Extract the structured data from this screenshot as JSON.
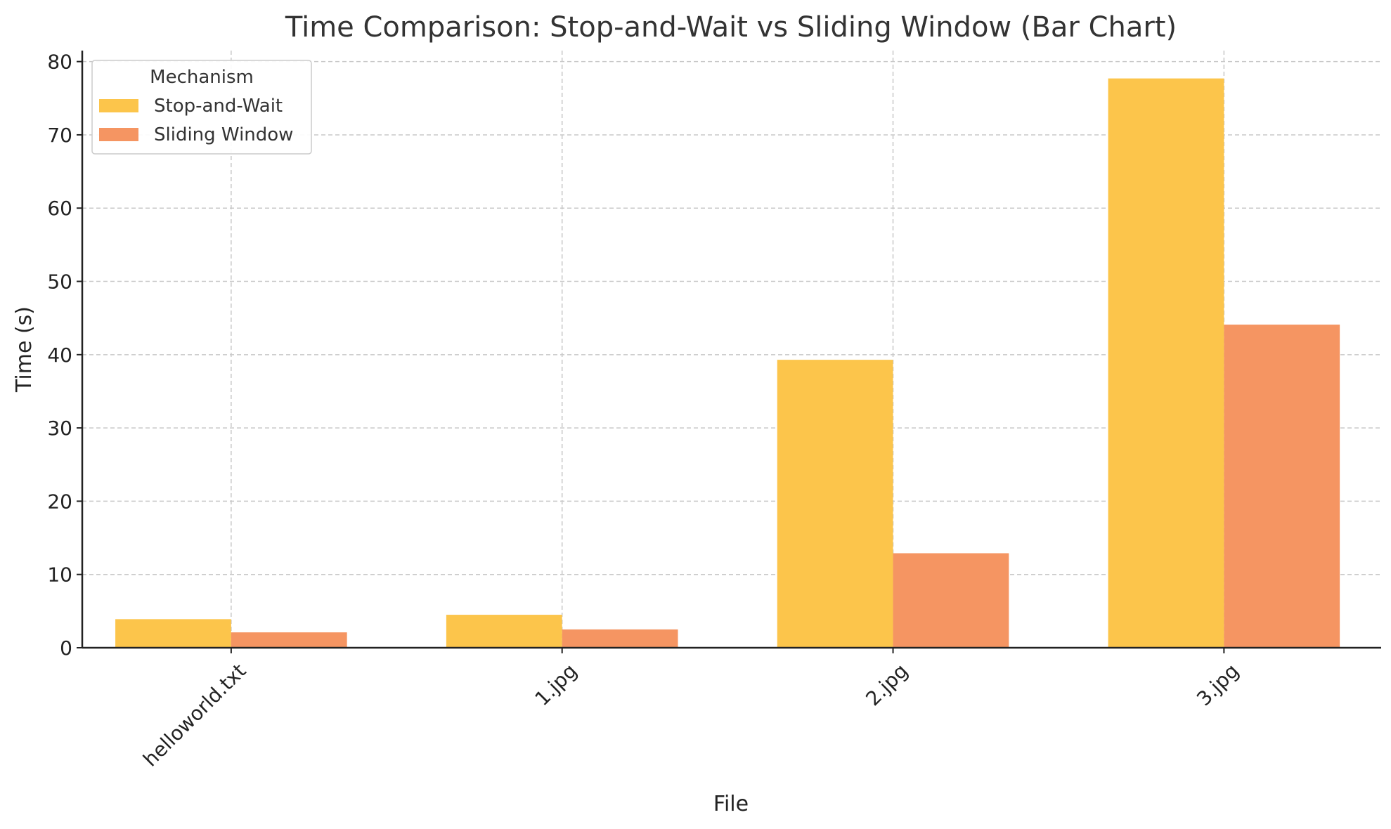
{
  "chart_data": {
    "type": "bar",
    "title": "Time Comparison: Stop-and-Wait vs Sliding Window (Bar Chart)",
    "xlabel": "File",
    "ylabel": "Time (s)",
    "categories": [
      "helloworld.txt",
      "1.jpg",
      "2.jpg",
      "3.jpg"
    ],
    "series": [
      {
        "name": "Stop-and-Wait",
        "color": "#fcc54b",
        "values": [
          3.9,
          4.5,
          39.3,
          77.7
        ]
      },
      {
        "name": "Sliding Window",
        "color": "#f59562",
        "values": [
          2.1,
          2.5,
          12.9,
          44.1
        ]
      }
    ],
    "ylim": [
      0,
      81.5
    ],
    "yticks": [
      0,
      10,
      20,
      30,
      40,
      50,
      60,
      70,
      80
    ],
    "grid": true,
    "legend": {
      "title": "Mechanism",
      "placement": "top-left"
    }
  }
}
